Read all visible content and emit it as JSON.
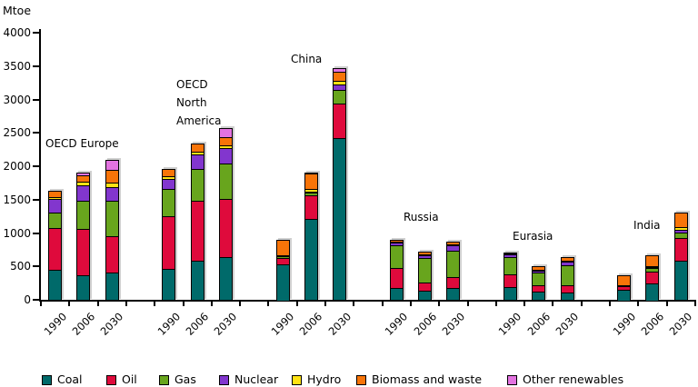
{
  "unit_label": "Mtoe",
  "colors": {
    "coal": "#006A6A",
    "oil": "#DF0A3C",
    "gas": "#68A51D",
    "nuclear": "#8236CE",
    "hydro": "#FFE214",
    "biomass_and_waste": "#F87408",
    "other_renewables": "#E373E0",
    "axis": "#000000"
  },
  "legend": {
    "items": [
      {
        "fuel": "coal",
        "label": "Coal"
      },
      {
        "fuel": "oil",
        "label": "Oil"
      },
      {
        "fuel": "gas",
        "label": "Gas"
      },
      {
        "fuel": "nuclear",
        "label": "Nuclear"
      },
      {
        "fuel": "hydro",
        "label": "Hydro"
      },
      {
        "fuel": "biomass_and_waste",
        "label": "Biomass and waste"
      },
      {
        "fuel": "other_renewables",
        "label": "Other renewables"
      }
    ]
  },
  "y_axis": {
    "min": 0,
    "max": 4000,
    "tick_step": 500,
    "tick_labels": [
      "0",
      "500",
      "1000",
      "1500",
      "2000",
      "2500",
      "3000",
      "3500",
      "4000"
    ]
  },
  "x_axis": {
    "years": [
      "1990",
      "2006",
      "2030"
    ]
  },
  "chart_data": {
    "type": "bar",
    "stacked": true,
    "unit": "Mtoe",
    "title": "",
    "ylabel": "Mtoe",
    "ylim": [
      0,
      4000
    ],
    "grid": false,
    "legend_position": "bottom",
    "stack_order": [
      "coal",
      "oil",
      "gas",
      "nuclear",
      "hydro",
      "biomass_and_waste",
      "other_renewables"
    ],
    "groups": [
      {
        "region": "OECD Europe",
        "label_lines": [
          "OECD Europe"
        ],
        "bars": [
          {
            "year": "1990",
            "total": 1620,
            "values": {
              "coal": 450,
              "oil": 620,
              "gas": 235,
              "nuclear": 205,
              "hydro": 30,
              "biomass_and_waste": 80,
              "other_renewables": 0
            }
          },
          {
            "year": "2006",
            "total": 1895,
            "values": {
              "coal": 360,
              "oil": 700,
              "gas": 420,
              "nuclear": 240,
              "hydro": 45,
              "biomass_and_waste": 105,
              "other_renewables": 25
            }
          },
          {
            "year": "2030",
            "total": 2080,
            "values": {
              "coal": 410,
              "oil": 545,
              "gas": 530,
              "nuclear": 205,
              "hydro": 60,
              "biomass_and_waste": 190,
              "other_renewables": 140
            }
          }
        ]
      },
      {
        "region": "OECD North America",
        "label_lines": [
          "OECD",
          "North",
          "America"
        ],
        "bars": [
          {
            "year": "1990",
            "total": 1940,
            "values": {
              "coal": 460,
              "oil": 785,
              "gas": 410,
              "nuclear": 150,
              "hydro": 40,
              "biomass_and_waste": 95,
              "other_renewables": 0
            }
          },
          {
            "year": "2006",
            "total": 2320,
            "values": {
              "coal": 580,
              "oil": 900,
              "gas": 480,
              "nuclear": 210,
              "hydro": 45,
              "biomass_and_waste": 105,
              "other_renewables": 0
            }
          },
          {
            "year": "2030",
            "total": 2560,
            "values": {
              "coal": 640,
              "oil": 875,
              "gas": 530,
              "nuclear": 225,
              "hydro": 45,
              "biomass_and_waste": 125,
              "other_renewables": 120
            }
          }
        ]
      },
      {
        "region": "China",
        "label_lines": [
          "China"
        ],
        "bars": [
          {
            "year": "1990",
            "total": 885,
            "values": {
              "coal": 540,
              "oil": 100,
              "gas": 15,
              "nuclear": 0,
              "hydro": 5,
              "biomass_and_waste": 225,
              "other_renewables": 0
            }
          },
          {
            "year": "2006",
            "total": 1890,
            "values": {
              "coal": 1210,
              "oil": 360,
              "gas": 40,
              "nuclear": 15,
              "hydro": 35,
              "biomass_and_waste": 225,
              "other_renewables": 5
            }
          },
          {
            "year": "2030",
            "total": 3460,
            "values": {
              "coal": 2420,
              "oil": 515,
              "gas": 205,
              "nuclear": 80,
              "hydro": 60,
              "biomass_and_waste": 130,
              "other_renewables": 50
            }
          }
        ]
      },
      {
        "region": "Russia",
        "label_lines": [
          "Russia"
        ],
        "bars": [
          {
            "year": "1990",
            "total": 890,
            "values": {
              "coal": 180,
              "oil": 290,
              "gas": 340,
              "nuclear": 45,
              "hydro": 15,
              "biomass_and_waste": 20,
              "other_renewables": 0
            }
          },
          {
            "year": "2006",
            "total": 705,
            "values": {
              "coal": 135,
              "oil": 125,
              "gas": 360,
              "nuclear": 45,
              "hydro": 15,
              "biomass_and_waste": 25,
              "other_renewables": 0
            }
          },
          {
            "year": "2030",
            "total": 860,
            "values": {
              "coal": 180,
              "oil": 160,
              "gas": 395,
              "nuclear": 75,
              "hydro": 20,
              "biomass_and_waste": 30,
              "other_renewables": 0
            }
          }
        ]
      },
      {
        "region": "Eurasia",
        "label_lines": [
          "Eurasia"
        ],
        "bars": [
          {
            "year": "1990",
            "total": 700,
            "values": {
              "coal": 190,
              "oil": 200,
              "gas": 255,
              "nuclear": 40,
              "hydro": 10,
              "biomass_and_waste": 5,
              "other_renewables": 0
            }
          },
          {
            "year": "2006",
            "total": 485,
            "values": {
              "coal": 120,
              "oil": 100,
              "gas": 185,
              "nuclear": 40,
              "hydro": 10,
              "biomass_and_waste": 30,
              "other_renewables": 0
            }
          },
          {
            "year": "2030",
            "total": 620,
            "values": {
              "coal": 110,
              "oil": 115,
              "gas": 295,
              "nuclear": 50,
              "hydro": 10,
              "biomass_and_waste": 40,
              "other_renewables": 0
            }
          }
        ]
      },
      {
        "region": "India",
        "label_lines": [
          "India"
        ],
        "bars": [
          {
            "year": "1990",
            "total": 350,
            "values": {
              "coal": 155,
              "oil": 55,
              "gas": 5,
              "nuclear": 0,
              "hydro": 0,
              "biomass_and_waste": 135,
              "other_renewables": 0
            }
          },
          {
            "year": "2006",
            "total": 650,
            "values": {
              "coal": 260,
              "oil": 165,
              "gas": 55,
              "nuclear": 5,
              "hydro": 20,
              "biomass_and_waste": 145,
              "other_renewables": 0
            }
          },
          {
            "year": "2030",
            "total": 1290,
            "values": {
              "coal": 590,
              "oil": 340,
              "gas": 82,
              "nuclear": 41,
              "hydro": 37,
              "biomass_and_waste": 200,
              "other_renewables": 0
            }
          }
        ]
      }
    ]
  }
}
